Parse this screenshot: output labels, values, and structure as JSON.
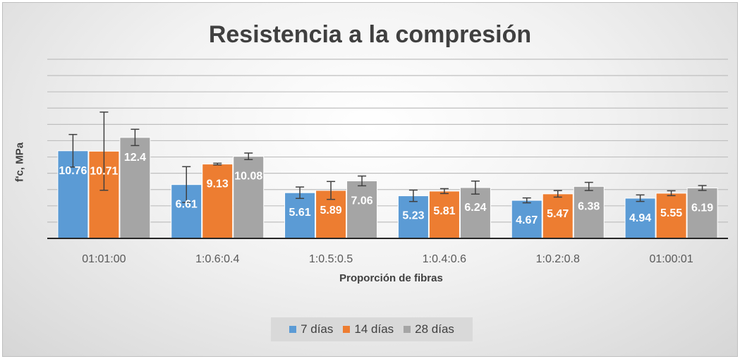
{
  "chart_data": {
    "type": "bar",
    "title": "Resistencia a la compresión",
    "xlabel": "Proporción de fibras",
    "ylabel": "f'c, MPa",
    "categories": [
      "01:01:00",
      "1:0.6:0.4",
      "1:0.5:0.5",
      "1:0.4:0.6",
      "1:0.2:0.8",
      "01:00:01"
    ],
    "ylim": [
      0,
      22
    ],
    "grid": true,
    "legend_position": "bottom",
    "series": [
      {
        "name": "7 días",
        "color": "#5b9bd5",
        "values": [
          10.76,
          6.61,
          5.61,
          5.23,
          4.67,
          4.94
        ],
        "error": [
          2.0,
          2.2,
          0.7,
          0.7,
          0.3,
          0.4
        ],
        "labels": [
          "10.76",
          "6.61",
          "5.61",
          "5.23",
          "4.67",
          "4.94"
        ]
      },
      {
        "name": "14 días",
        "color": "#ed7d31",
        "values": [
          10.71,
          9.13,
          5.89,
          5.81,
          5.47,
          5.55
        ],
        "error": [
          4.8,
          0.1,
          1.1,
          0.3,
          0.4,
          0.3
        ],
        "labels": [
          "10.71",
          "9.13",
          "5.89",
          "5.81",
          "5.47",
          "5.55"
        ]
      },
      {
        "name": "28 días",
        "color": "#a5a5a5",
        "values": [
          12.4,
          10.08,
          7.06,
          6.24,
          6.38,
          6.19
        ],
        "error": [
          1.0,
          0.4,
          0.6,
          0.8,
          0.5,
          0.3
        ],
        "labels": [
          "12.4",
          "10.08",
          "7.06",
          "6.24",
          "6.38",
          "6.19"
        ]
      }
    ]
  }
}
